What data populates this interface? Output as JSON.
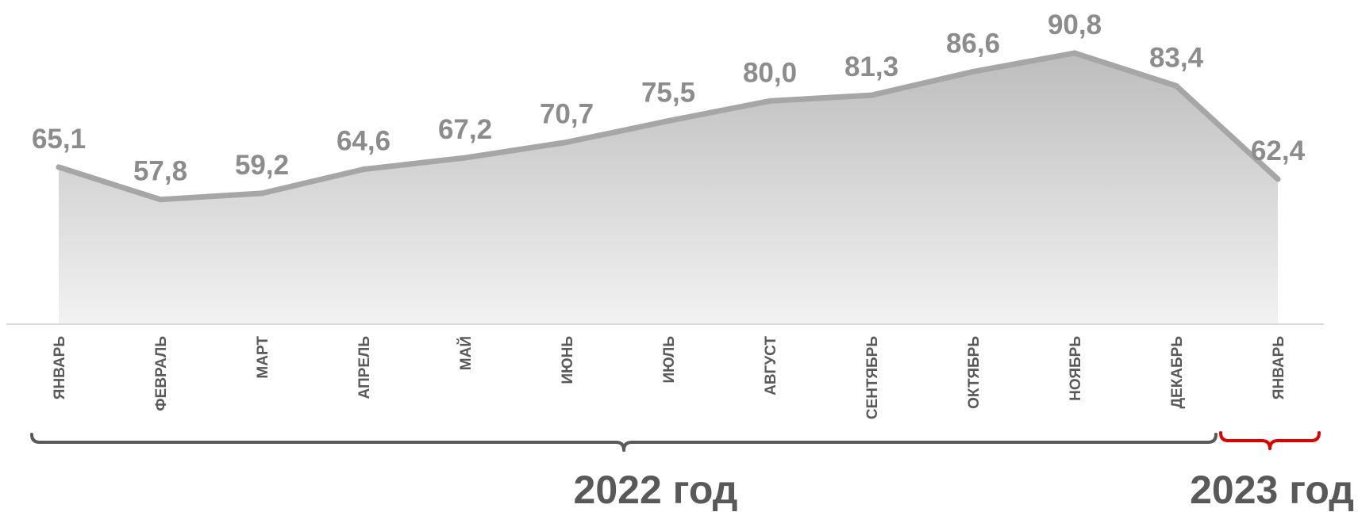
{
  "chart_data": {
    "type": "area",
    "categories": [
      "ЯНВАРЬ",
      "ФЕВРАЛЬ",
      "МАРТ",
      "АПРЕЛЬ",
      "МАЙ",
      "ИЮНЬ",
      "ИЮЛЬ",
      "АВГУСТ",
      "СЕНТЯБРЬ",
      "ОКТЯБРЬ",
      "НОЯБРЬ",
      "ДЕКАБРЬ",
      "ЯНВАРЬ"
    ],
    "values": [
      65.1,
      57.8,
      59.2,
      64.6,
      67.2,
      70.7,
      75.5,
      80.0,
      81.3,
      86.6,
      90.8,
      83.4,
      62.4
    ],
    "value_labels": [
      "65,1",
      "57,8",
      "59,2",
      "64,6",
      "67,2",
      "70,7",
      "75,5",
      "80,0",
      "81,3",
      "86,6",
      "90,8",
      "83,4",
      "62,4"
    ],
    "title": "",
    "xlabel": "",
    "ylabel": "",
    "ylim": [
      0,
      100
    ],
    "grid": false,
    "legend": "none",
    "groups": [
      {
        "label": "2022 год",
        "start_index": 0,
        "end_index": 11,
        "color": "#595959"
      },
      {
        "label": "2023 год",
        "start_index": 12,
        "end_index": 12,
        "color": "#e00000"
      }
    ],
    "colors": {
      "line": "#a6a6a6",
      "fill_top": "#bdbdbd",
      "fill_bottom": "#f2f2f2",
      "value_text": "#8c8c8c",
      "category_text": "#595959",
      "axis": "#d9d9d9"
    }
  }
}
